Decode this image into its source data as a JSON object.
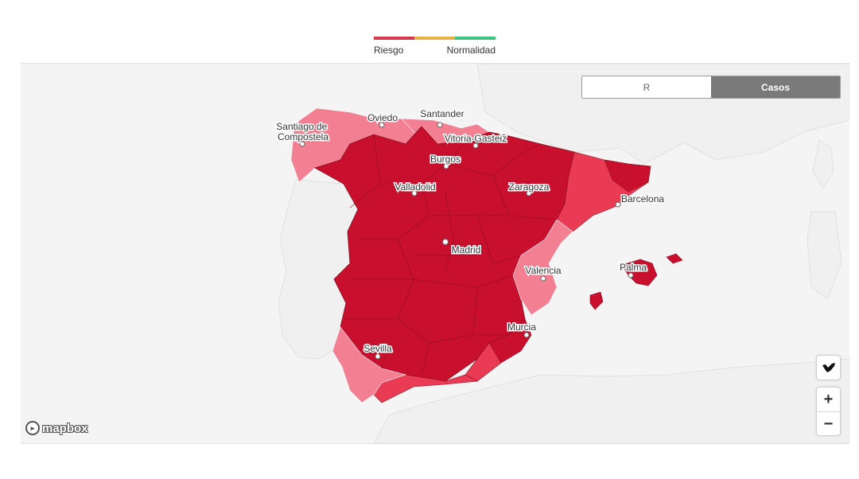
{
  "legend": {
    "left_label": "Riesgo",
    "right_label": "Normalidad",
    "colors": [
      "#d6394e",
      "#e8b148",
      "#3dc47f"
    ]
  },
  "toggle": {
    "option_r": "R",
    "option_casos": "Casos",
    "selected": "Casos"
  },
  "colors": {
    "sea": "#ffffff",
    "land_foreign": "#f1f1f1",
    "high": "#c8102e",
    "medium": "#ea3b54",
    "low": "#f28092",
    "borders": "#8f0d20"
  },
  "cities": [
    {
      "name": "Santiago de\nCompostela"
    },
    {
      "name": "Oviedo"
    },
    {
      "name": "Santander"
    },
    {
      "name": "Vitoria-Gasteiz"
    },
    {
      "name": "Burgos"
    },
    {
      "name": "Valladolid"
    },
    {
      "name": "Zaragoza"
    },
    {
      "name": "Barcelona"
    },
    {
      "name": "Madrid"
    },
    {
      "name": "Valencia"
    },
    {
      "name": "Palma"
    },
    {
      "name": "Murcia"
    },
    {
      "name": "Sevilla"
    }
  ],
  "controls": {
    "zoom_in": "+",
    "zoom_out": "−",
    "canary_icon": "canary-islands-icon"
  },
  "attribution": {
    "logo_text": "mapbox"
  }
}
